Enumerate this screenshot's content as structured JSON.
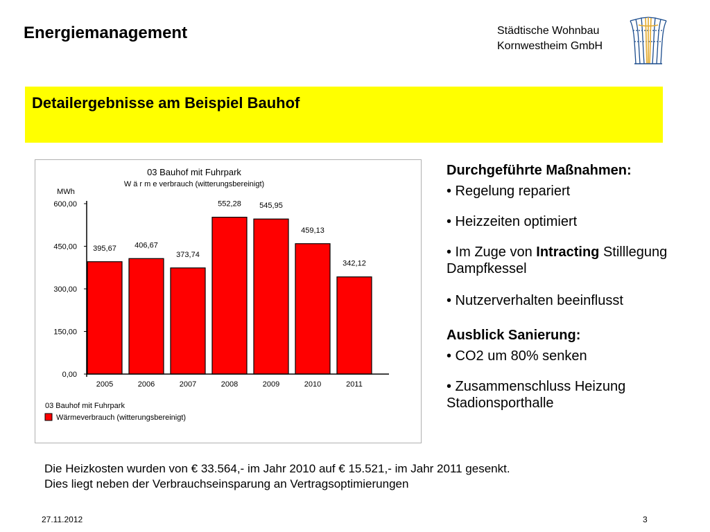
{
  "header": {
    "title": "Energiemanagement",
    "company_line1": "Städtische Wohnbau",
    "company_line2": "Kornwestheim GmbH"
  },
  "banner": {
    "text": "Detailergebnisse am Beispiel Bauhof",
    "color": "#ffff00"
  },
  "chart_data": {
    "type": "bar",
    "title": "03 Bauhof mit Fuhrpark",
    "subtitle": "W ä r m e verbrauch  (witterungsbereinigt)",
    "ylabel": "MWh",
    "categories": [
      "2005",
      "2006",
      "2007",
      "2008",
      "2009",
      "2010",
      "2011"
    ],
    "values": [
      395.67,
      406.67,
      373.74,
      552.28,
      545.95,
      459.13,
      342.12
    ],
    "data_labels": [
      "395,67",
      "406,67",
      "373,74",
      "552,28",
      "545,95",
      "459,13",
      "342,12"
    ],
    "yticks": [
      0,
      150,
      300,
      450,
      600
    ],
    "ytick_labels": [
      "0,00",
      "150,00",
      "300,00",
      "450,00",
      "600,00"
    ],
    "ylim": [
      0,
      600
    ],
    "grid": false,
    "legend_title": "03 Bauhof mit Fuhrpark",
    "legend_label": "Wärmeverbrauch (witterungsbereinigt)",
    "legend_position": "bottom-left",
    "bar_color": "#ff0000"
  },
  "notes": {
    "measures_heading": "Durchgeführte Maßnahmen:",
    "measures": [
      {
        "text": "• Regelung repariert"
      },
      {
        "text": "• Heizzeiten optimiert"
      },
      {
        "pre": "• Im Zuge von ",
        "bold": "Intracting",
        "post": " Stilllegung Dampfkessel"
      },
      {
        "text": "• Nutzerverhalten beeinflusst"
      }
    ],
    "outlook_heading": "Ausblick Sanierung:",
    "outlook": [
      {
        "text": "• CO2 um 80% senken"
      },
      {
        "text": "• Zusammenschluss Heizung Stadionsporthalle"
      }
    ]
  },
  "summary": {
    "line1": "Die Heizkosten wurden von € 33.564,- im Jahr 2010 auf € 15.521,- im Jahr 2011 gesenkt.",
    "line2": "Dies liegt neben der Verbrauchseinsparung an Vertragsoptimierungen"
  },
  "footer": {
    "date": "27.11.2012",
    "page": "3"
  },
  "logo": {
    "icon": "city-crown-logo-icon",
    "colors": [
      "#1a4b8c",
      "#e3a92c"
    ]
  }
}
